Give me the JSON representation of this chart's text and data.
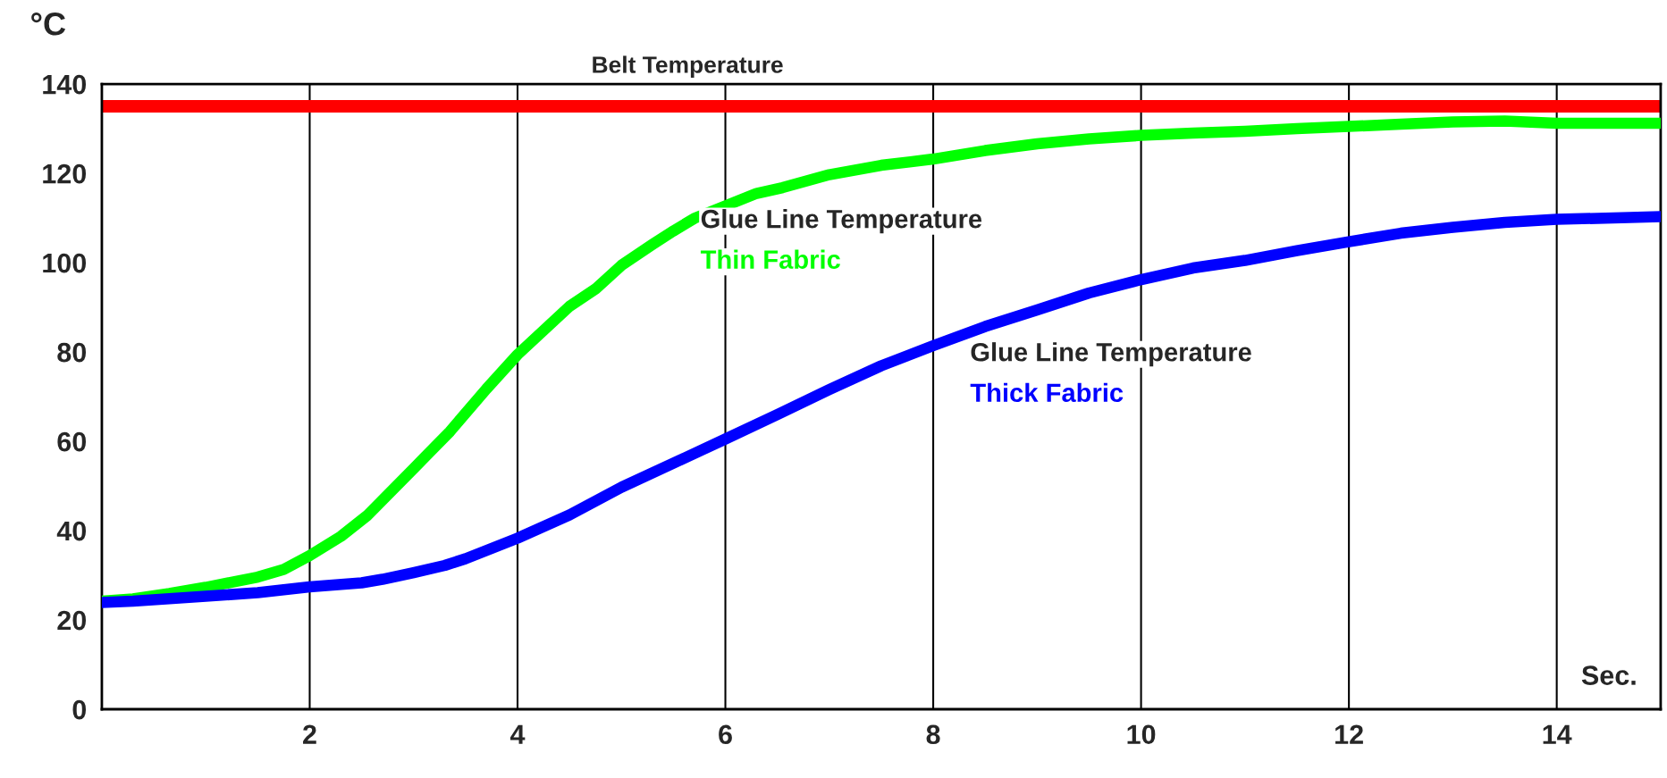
{
  "chart_data": {
    "type": "line",
    "ylabel": "°C",
    "xlabel": "Sec.",
    "xlim": [
      0,
      15
    ],
    "ylim": [
      0,
      140
    ],
    "xticks": [
      {
        "value": 0,
        "label": null
      },
      2,
      4,
      6,
      8,
      10,
      12,
      14
    ],
    "yticks": [
      0,
      20,
      40,
      60,
      80,
      100,
      120,
      140
    ],
    "grid": "x",
    "marker": "none",
    "line_style": "solid",
    "series": [
      {
        "name": "Thin Fabric",
        "color": "#00ff00",
        "x": [
          0,
          0.3,
          0.65,
          1,
          1.5,
          1.75,
          2,
          2.3,
          2.55,
          3,
          3.35,
          3.7,
          4,
          4.5,
          4.75,
          5,
          5.3,
          5.5,
          5.7,
          6,
          6.3,
          6.55,
          7,
          7.5,
          8,
          8.5,
          9,
          9.5,
          10,
          10.5,
          11,
          11.5,
          12,
          12.5,
          13,
          13.5,
          14,
          15
        ],
        "values": [
          24.2,
          24.7,
          25.9,
          27.3,
          29.6,
          31.3,
          34.4,
          38.7,
          43.3,
          53.9,
          62.2,
          71.7,
          79.4,
          90.2,
          94.1,
          99.4,
          104.1,
          107.1,
          109.9,
          112.7,
          115.5,
          116.8,
          119.7,
          121.8,
          123.2,
          125.1,
          126.6,
          127.7,
          128.5,
          129,
          129.4,
          130,
          130.5,
          131,
          131.5,
          131.7,
          131.2,
          131.2
        ]
      },
      {
        "name": "Thick Fabric",
        "color": "#0000ff",
        "x": [
          0,
          0.3,
          1,
          1.5,
          2,
          2.5,
          2.7,
          3,
          3.3,
          3.5,
          4,
          4.5,
          5,
          6,
          6.5,
          7,
          7.5,
          8,
          8.5,
          9,
          9.5,
          10,
          10.5,
          11,
          11.5,
          12,
          12.5,
          13,
          13.5,
          14,
          14.7,
          15
        ],
        "values": [
          23.9,
          24.2,
          25.3,
          26.1,
          27.4,
          28.3,
          29.1,
          30.6,
          32.2,
          33.7,
          38.3,
          43.5,
          49.7,
          60.5,
          66,
          71.6,
          76.9,
          81.4,
          85.7,
          89.4,
          93.2,
          96.2,
          98.8,
          100.5,
          102.7,
          104.7,
          106.6,
          107.9,
          109,
          109.7,
          110.1,
          110.3
        ]
      }
    ],
    "ref_lines": [
      {
        "axis": "y",
        "value": 135,
        "label": "Belt Temperature",
        "color": "#ff0000",
        "line_style": "solid"
      }
    ],
    "annotations": [
      "Glue Line Temperature",
      "Glue Line Temperature"
    ]
  }
}
